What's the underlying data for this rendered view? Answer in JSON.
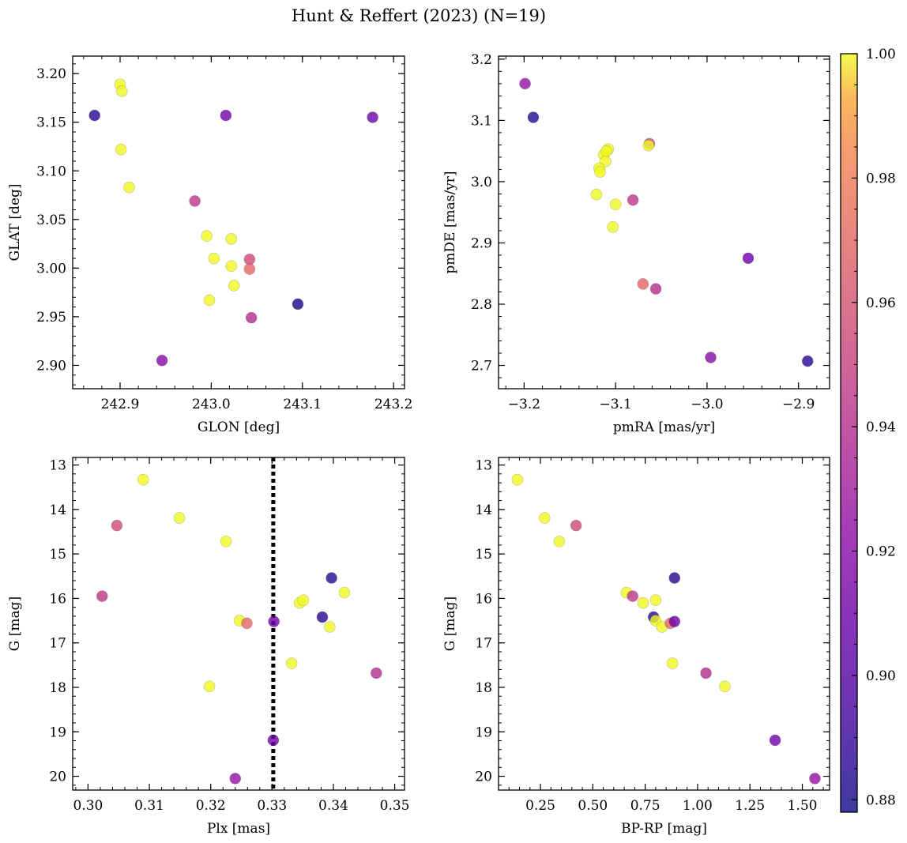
{
  "title": "Hunt & Reffert (2023) (N=19)",
  "colorbar": {
    "colormap": "plasma",
    "range": [
      0.878,
      1.0
    ],
    "ticks": [
      0.88,
      0.9,
      0.92,
      0.94,
      0.96,
      0.98,
      1.0
    ],
    "tick_labels": [
      "0.88",
      "0.90",
      "0.92",
      "0.94",
      "0.96",
      "0.98",
      "1.00"
    ]
  },
  "chart_data": [
    {
      "type": "scatter",
      "id": "glon-glat",
      "xlabel": "GLON [deg]",
      "ylabel": "GLAT [deg]",
      "xlim": [
        242.848,
        243.212
      ],
      "ylim": [
        2.876,
        3.218
      ],
      "xticks": [
        242.9,
        243.0,
        243.1,
        243.2
      ],
      "xtick_labels": [
        "242.9",
        "243.0",
        "243.1",
        "243.2"
      ],
      "yticks": [
        2.9,
        2.95,
        3.0,
        3.05,
        3.1,
        3.15,
        3.2
      ],
      "ytick_labels": [
        "2.90",
        "2.95",
        "3.00",
        "3.05",
        "3.10",
        "3.15",
        "3.20"
      ],
      "points": [
        {
          "x": 242.872,
          "y": 3.157,
          "c": 0.885
        },
        {
          "x": 242.9,
          "y": 3.189,
          "c": 1.0
        },
        {
          "x": 242.902,
          "y": 3.182,
          "c": 1.0
        },
        {
          "x": 242.901,
          "y": 3.122,
          "c": 1.0
        },
        {
          "x": 242.91,
          "y": 3.083,
          "c": 1.0
        },
        {
          "x": 242.946,
          "y": 2.905,
          "c": 0.92
        },
        {
          "x": 242.982,
          "y": 3.069,
          "c": 0.945
        },
        {
          "x": 242.995,
          "y": 3.033,
          "c": 1.0
        },
        {
          "x": 243.003,
          "y": 3.01,
          "c": 1.0
        },
        {
          "x": 242.998,
          "y": 2.967,
          "c": 1.0
        },
        {
          "x": 243.016,
          "y": 3.157,
          "c": 0.91
        },
        {
          "x": 243.022,
          "y": 3.03,
          "c": 1.0
        },
        {
          "x": 243.022,
          "y": 3.002,
          "c": 1.0
        },
        {
          "x": 243.025,
          "y": 2.982,
          "c": 1.0
        },
        {
          "x": 243.042,
          "y": 3.009,
          "c": 0.955
        },
        {
          "x": 243.042,
          "y": 2.999,
          "c": 0.97
        },
        {
          "x": 243.044,
          "y": 2.949,
          "c": 0.94
        },
        {
          "x": 243.095,
          "y": 2.963,
          "c": 0.88
        },
        {
          "x": 243.177,
          "y": 3.155,
          "c": 0.91
        }
      ]
    },
    {
      "type": "scatter",
      "id": "pmra-pmde",
      "xlabel": "pmRA [mas/yr]",
      "ylabel": "pmDE [mas/yr]",
      "xlim": [
        -3.228,
        -2.866
      ],
      "ylim": [
        2.662,
        3.205
      ],
      "xticks": [
        -3.2,
        -3.1,
        -3.0,
        -2.9
      ],
      "xtick_labels": [
        "−3.2",
        "−3.1",
        "−3.0",
        "−2.9"
      ],
      "yticks": [
        2.7,
        2.8,
        2.9,
        3.0,
        3.1,
        3.2
      ],
      "ytick_labels": [
        "2.7",
        "2.8",
        "2.9",
        "3.0",
        "3.1",
        "3.2"
      ],
      "points": [
        {
          "x": -3.199,
          "y": 3.16,
          "c": 0.925
        },
        {
          "x": -3.19,
          "y": 3.105,
          "c": 0.885
        },
        {
          "x": -3.113,
          "y": 3.044,
          "c": 1.0
        },
        {
          "x": -3.108,
          "y": 3.053,
          "c": 1.0
        },
        {
          "x": -3.11,
          "y": 3.05,
          "c": 1.0
        },
        {
          "x": -3.111,
          "y": 3.033,
          "c": 1.0
        },
        {
          "x": -3.118,
          "y": 3.022,
          "c": 1.0
        },
        {
          "x": -3.117,
          "y": 3.016,
          "c": 1.0
        },
        {
          "x": -3.121,
          "y": 2.979,
          "c": 1.0
        },
        {
          "x": -3.1,
          "y": 2.963,
          "c": 1.0
        },
        {
          "x": -3.103,
          "y": 2.926,
          "c": 1.0
        },
        {
          "x": -3.081,
          "y": 2.97,
          "c": 0.945
        },
        {
          "x": -3.063,
          "y": 3.062,
          "c": 0.955
        },
        {
          "x": -3.064,
          "y": 3.059,
          "c": 1.0
        },
        {
          "x": -3.07,
          "y": 2.833,
          "c": 0.97
        },
        {
          "x": -3.056,
          "y": 2.825,
          "c": 0.94
        },
        {
          "x": -2.955,
          "y": 2.875,
          "c": 0.91
        },
        {
          "x": -2.996,
          "y": 2.713,
          "c": 0.92
        },
        {
          "x": -2.89,
          "y": 2.707,
          "c": 0.885
        }
      ]
    },
    {
      "type": "scatter",
      "id": "plx-g",
      "xlabel": "Plx [mas]",
      "ylabel": "G [mag]",
      "xlim": [
        0.2975,
        0.3516
      ],
      "ylim": [
        20.31,
        12.83
      ],
      "y_inverted": true,
      "xticks": [
        0.3,
        0.31,
        0.32,
        0.33,
        0.34,
        0.35
      ],
      "xtick_labels": [
        "0.30",
        "0.31",
        "0.32",
        "0.33",
        "0.34",
        "0.35"
      ],
      "yticks": [
        13,
        14,
        15,
        16,
        17,
        18,
        19,
        20
      ],
      "ytick_labels": [
        "13",
        "14",
        "15",
        "16",
        "17",
        "18",
        "19",
        "20"
      ],
      "vline": {
        "x": 0.3302,
        "style": "dotted"
      },
      "points": [
        {
          "x": 0.309,
          "y": 13.33,
          "c": 1.0
        },
        {
          "x": 0.3047,
          "y": 14.36,
          "c": 0.955
        },
        {
          "x": 0.3149,
          "y": 14.19,
          "c": 1.0
        },
        {
          "x": 0.3225,
          "y": 14.72,
          "c": 1.0
        },
        {
          "x": 0.3023,
          "y": 15.95,
          "c": 0.945
        },
        {
          "x": 0.3247,
          "y": 16.5,
          "c": 1.0
        },
        {
          "x": 0.3259,
          "y": 16.56,
          "c": 0.97
        },
        {
          "x": 0.3303,
          "y": 16.52,
          "c": 0.91
        },
        {
          "x": 0.3345,
          "y": 16.1,
          "c": 1.0
        },
        {
          "x": 0.3351,
          "y": 16.04,
          "c": 1.0
        },
        {
          "x": 0.3397,
          "y": 15.54,
          "c": 0.885
        },
        {
          "x": 0.3382,
          "y": 16.42,
          "c": 0.885
        },
        {
          "x": 0.3394,
          "y": 16.64,
          "c": 1.0
        },
        {
          "x": 0.3418,
          "y": 15.87,
          "c": 1.0
        },
        {
          "x": 0.3332,
          "y": 17.46,
          "c": 1.0
        },
        {
          "x": 0.3198,
          "y": 17.98,
          "c": 1.0
        },
        {
          "x": 0.347,
          "y": 17.68,
          "c": 0.94
        },
        {
          "x": 0.3302,
          "y": 19.19,
          "c": 0.91
        },
        {
          "x": 0.324,
          "y": 20.05,
          "c": 0.925
        }
      ]
    },
    {
      "type": "scatter",
      "id": "bprp-g",
      "xlabel": "BP-RP [mag]",
      "ylabel": "G [mag]",
      "xlim": [
        0.05,
        1.63
      ],
      "ylim": [
        20.31,
        12.83
      ],
      "y_inverted": true,
      "xticks": [
        0.25,
        0.5,
        0.75,
        1.0,
        1.25,
        1.5
      ],
      "xtick_labels": [
        "0.25",
        "0.50",
        "0.75",
        "1.00",
        "1.25",
        "1.50"
      ],
      "yticks": [
        13,
        14,
        15,
        16,
        17,
        18,
        19,
        20
      ],
      "ytick_labels": [
        "13",
        "14",
        "15",
        "16",
        "17",
        "18",
        "19",
        "20"
      ],
      "points": [
        {
          "x": 0.14,
          "y": 13.33,
          "c": 1.0
        },
        {
          "x": 0.27,
          "y": 14.19,
          "c": 1.0
        },
        {
          "x": 0.34,
          "y": 14.72,
          "c": 1.0
        },
        {
          "x": 0.42,
          "y": 14.36,
          "c": 0.955
        },
        {
          "x": 0.66,
          "y": 15.87,
          "c": 1.0
        },
        {
          "x": 0.69,
          "y": 15.95,
          "c": 0.945
        },
        {
          "x": 0.74,
          "y": 16.1,
          "c": 1.0
        },
        {
          "x": 0.8,
          "y": 16.04,
          "c": 1.0
        },
        {
          "x": 0.79,
          "y": 16.42,
          "c": 0.885
        },
        {
          "x": 0.8,
          "y": 16.5,
          "c": 1.0
        },
        {
          "x": 0.83,
          "y": 16.64,
          "c": 1.0
        },
        {
          "x": 0.87,
          "y": 16.56,
          "c": 0.97
        },
        {
          "x": 0.89,
          "y": 16.52,
          "c": 0.91
        },
        {
          "x": 0.89,
          "y": 15.54,
          "c": 0.885
        },
        {
          "x": 0.88,
          "y": 17.46,
          "c": 1.0
        },
        {
          "x": 1.04,
          "y": 17.68,
          "c": 0.94
        },
        {
          "x": 1.13,
          "y": 17.98,
          "c": 1.0
        },
        {
          "x": 1.37,
          "y": 19.19,
          "c": 0.91
        },
        {
          "x": 1.56,
          "y": 20.05,
          "c": 0.925
        }
      ]
    }
  ]
}
